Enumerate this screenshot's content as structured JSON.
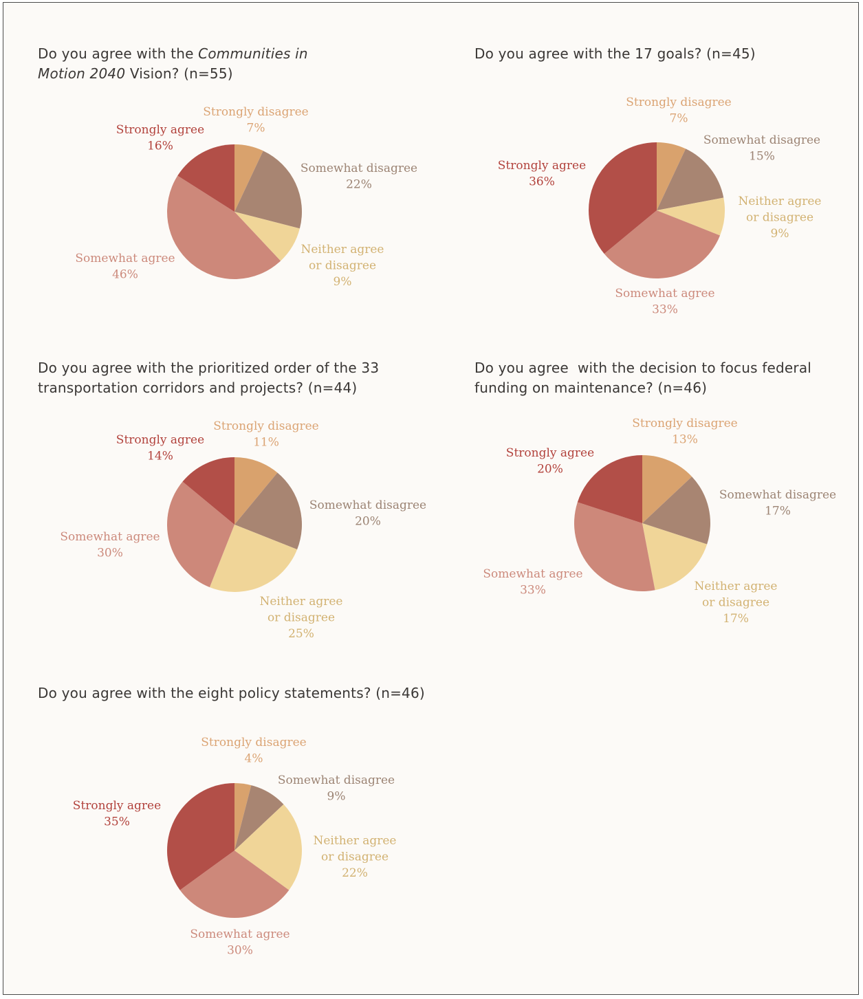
{
  "colors": {
    "Strongly disagree": "#d9a26d",
    "Somewhat disagree": "#a88572",
    "Neither agree or disagree": "#f0d598",
    "Somewhat agree": "#cd887a",
    "Strongly agree": "#b24f48"
  },
  "label_colors": {
    "Strongly disagree": "#dba474",
    "Somewhat disagree": "#9c8474",
    "Neither agree or disagree": "#d2b272",
    "Somewhat agree": "#cc8a7c",
    "Strongly agree": "#b2423c"
  },
  "chart_data": [
    {
      "type": "pie",
      "title_pre": "Do you agree with the ",
      "title_em": "Communities in",
      "title_line2_em": "Motion 2040",
      "title_line2_post": " Vision? (n=55)",
      "categories": [
        "Strongly disagree",
        "Somewhat disagree",
        "Neither agree or disagree",
        "Somewhat agree",
        "Strongly agree"
      ],
      "values": [
        7,
        22,
        9,
        46,
        16
      ],
      "labels": {
        "sd": [
          "Strongly disagree"
        ],
        "sd_pct": "7%",
        "swd": [
          "Somewhat disagree"
        ],
        "swd_pct": "22%",
        "n": [
          "Neither agree",
          "or disagree"
        ],
        "n_pct": "9%",
        "swa": [
          "Somewhat agree"
        ],
        "swa_pct": "46%",
        "sa": [
          "Strongly agree"
        ],
        "sa_pct": "16%"
      }
    },
    {
      "type": "pie",
      "title": "Do you agree with the 17 goals? (n=45)",
      "categories": [
        "Strongly disagree",
        "Somewhat disagree",
        "Neither agree or disagree",
        "Somewhat agree",
        "Strongly agree"
      ],
      "values": [
        7,
        15,
        9,
        33,
        36
      ],
      "labels": {
        "sd": [
          "Strongly disagree"
        ],
        "sd_pct": "7%",
        "swd": [
          "Somewhat disagree"
        ],
        "swd_pct": "15%",
        "n": [
          "Neither agree",
          "or disagree"
        ],
        "n_pct": "9%",
        "swa": [
          "Somewhat agree"
        ],
        "swa_pct": "33%",
        "sa": [
          "Strongly agree"
        ],
        "sa_pct": "36%"
      }
    },
    {
      "type": "pie",
      "title": "Do you agree with the prioritized order of the 33",
      "title_line2": "transportation corridors and projects? (n=44)",
      "categories": [
        "Strongly disagree",
        "Somewhat disagree",
        "Neither agree or disagree",
        "Somewhat agree",
        "Strongly agree"
      ],
      "values": [
        11,
        20,
        25,
        30,
        14
      ],
      "labels": {
        "sd": [
          "Strongly disagree"
        ],
        "sd_pct": "11%",
        "swd": [
          "Somewhat disagree"
        ],
        "swd_pct": "20%",
        "n": [
          "Neither agree",
          "or disagree"
        ],
        "n_pct": "25%",
        "swa": [
          "Somewhat agree"
        ],
        "swa_pct": "30%",
        "sa": [
          "Strongly agree"
        ],
        "sa_pct": "14%"
      }
    },
    {
      "type": "pie",
      "title": "Do you agree  with the decision to focus federal",
      "title_line2": "funding on maintenance? (n=46)",
      "categories": [
        "Strongly disagree",
        "Somewhat disagree",
        "Neither agree or disagree",
        "Somewhat agree",
        "Strongly agree"
      ],
      "values": [
        13,
        17,
        17,
        33,
        20
      ],
      "labels": {
        "sd": [
          "Strongly disagree"
        ],
        "sd_pct": "13%",
        "swd": [
          "Somewhat disagree"
        ],
        "swd_pct": "17%",
        "n": [
          "Neither agree",
          "or disagree"
        ],
        "n_pct": "17%",
        "swa": [
          "Somewhat agree"
        ],
        "swa_pct": "33%",
        "sa": [
          "Strongly agree"
        ],
        "sa_pct": "20%"
      }
    },
    {
      "type": "pie",
      "title": "Do you agree with the eight policy statements? (n=46)",
      "categories": [
        "Strongly disagree",
        "Somewhat disagree",
        "Neither agree or disagree",
        "Somewhat agree",
        "Strongly agree"
      ],
      "values": [
        4,
        9,
        22,
        30,
        35
      ],
      "labels": {
        "sd": [
          "Strongly disagree"
        ],
        "sd_pct": "4%",
        "swd": [
          "Somewhat disagree"
        ],
        "swd_pct": "9%",
        "n": [
          "Neither agree",
          "or disagree"
        ],
        "n_pct": "22%",
        "swa": [
          "Somewhat agree"
        ],
        "swa_pct": "30%",
        "sa": [
          "Strongly agree"
        ],
        "sa_pct": "35%"
      }
    }
  ]
}
